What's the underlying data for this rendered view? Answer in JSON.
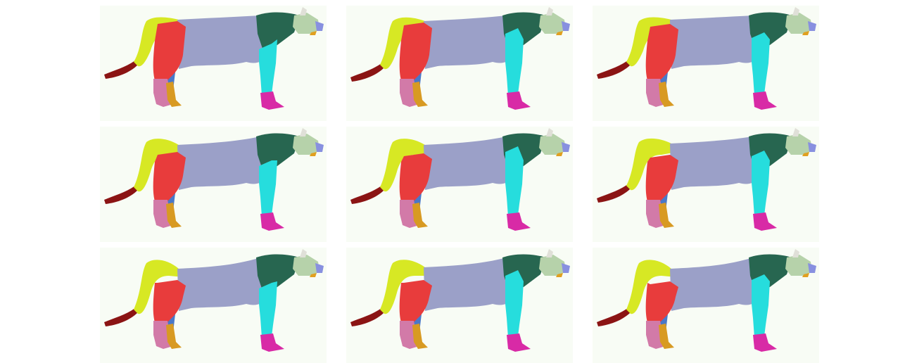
{
  "figure": {
    "background": "#ffffff",
    "panel_background": "#f8fcf5",
    "rows": 3,
    "cols": 3
  },
  "part_colors": {
    "tail_tip": "#8b1414",
    "tail_back": "#d7e824",
    "hip_thigh": "#e83c3c",
    "far_leg": "#4a78c8",
    "hind_lower": "#d27aa8",
    "hind_paw": "#d89a22",
    "torso": "#9ba0c8",
    "neck_shoulder": "#276650",
    "front_leg": "#26dddd",
    "front_paw": "#d82aa6",
    "head": "#b6d2aa",
    "ear": "#e0e0d8",
    "snout": "#8890e0",
    "nose": "#e0a020"
  },
  "panels": [
    {
      "variant": "coarse-a"
    },
    {
      "variant": "coarse-b"
    },
    {
      "variant": "coarse-c"
    },
    {
      "variant": "mid-a"
    },
    {
      "variant": "mid-b"
    },
    {
      "variant": "mid-c"
    },
    {
      "variant": "fine-a"
    },
    {
      "variant": "fine-b"
    },
    {
      "variant": "fine-c"
    }
  ]
}
